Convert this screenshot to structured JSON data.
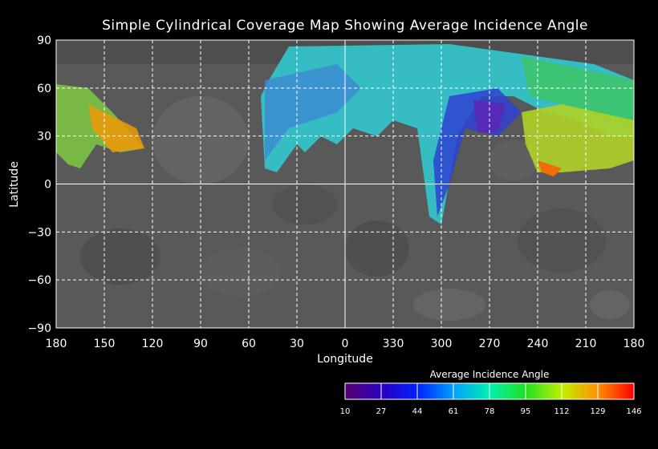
{
  "title": "Simple Cylindrical Coverage Map Showing Average Incidence Angle",
  "axes": {
    "x_label": "Longitude",
    "y_label": "Latitude",
    "x_ticks": [
      "180",
      "150",
      "120",
      "90",
      "60",
      "30",
      "0",
      "330",
      "300",
      "270",
      "240",
      "210",
      "180"
    ],
    "y_ticks": [
      "90",
      "60",
      "30",
      "0",
      "−30",
      "−60",
      "−90"
    ]
  },
  "colorbar": {
    "title": "Average Incidence Angle",
    "ticks": [
      "10",
      "27",
      "44",
      "61",
      "78",
      "95",
      "112",
      "129",
      "146"
    ],
    "range": [
      10,
      146
    ]
  },
  "colors": {
    "background": "#000000",
    "grid": "#ffffff",
    "basemap": "#5a5a5a"
  }
}
